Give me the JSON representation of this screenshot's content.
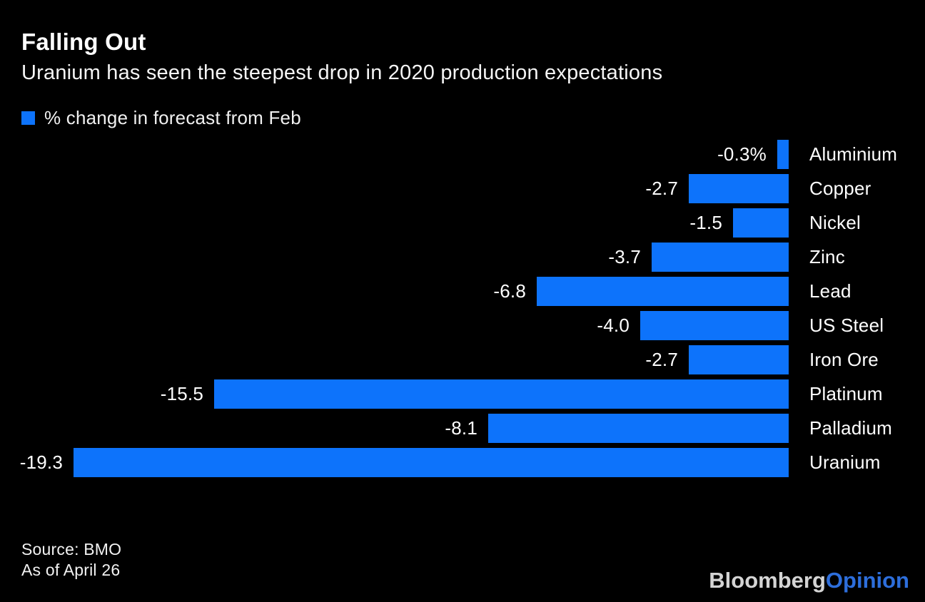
{
  "header": {
    "title": "Falling Out",
    "subtitle": "Uranium has seen the steepest drop in 2020 production expectations"
  },
  "legend": {
    "label": "% change in forecast from Feb",
    "swatch_color": "#0d73fb"
  },
  "chart_data": {
    "type": "bar",
    "orientation": "horizontal",
    "baseline": "right",
    "title": "Falling Out",
    "subtitle": "Uranium has seen the steepest drop in 2020 production expectations",
    "series_name": "% change in forecast from Feb",
    "categories": [
      "Aluminium",
      "Copper",
      "Nickel",
      "Zinc",
      "Lead",
      "US Steel",
      "Iron Ore",
      "Platinum",
      "Palladium",
      "Uranium"
    ],
    "values": [
      -0.3,
      -2.7,
      -1.5,
      -3.7,
      -6.8,
      -4.0,
      -2.7,
      -15.5,
      -8.1,
      -19.3
    ],
    "value_labels": [
      "-0.3%",
      "-2.7",
      "-1.5",
      "-3.7",
      "-6.8",
      "-4.0",
      "-2.7",
      "-15.5",
      "-8.1",
      "-19.3"
    ],
    "xlim": [
      -19.3,
      0
    ],
    "bar_color": "#0d73fb",
    "grid": false,
    "legend_position": "top-left"
  },
  "footer": {
    "source": "Source: BMO",
    "as_of": "As of April 26",
    "logo_primary": "Bloomberg",
    "logo_secondary": "Opinion",
    "logo_primary_color": "#d4d4d4",
    "logo_secondary_color": "#2d6edb"
  }
}
